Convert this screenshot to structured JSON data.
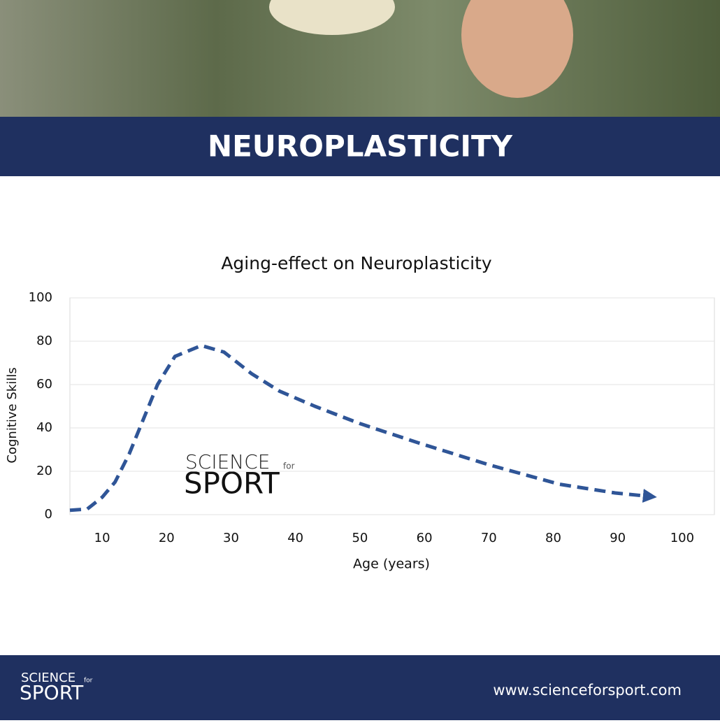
{
  "header": {
    "title": "NEUROPLASTICITY"
  },
  "logo": {
    "top": "SCIENCE",
    "small": "for",
    "bottom": "SPORT"
  },
  "footer": {
    "url": "www.scienceforsport.com"
  },
  "chart_data": {
    "type": "line",
    "title": "Aging-effect on Neuroplasticity",
    "x_label": "Age (years)",
    "y_label": "Cognitive Skills",
    "x": [
      5,
      7.7,
      10,
      12,
      14.2,
      16.4,
      18.6,
      21.3,
      25.4,
      28.9,
      33.2,
      37.5,
      43,
      50,
      59.2,
      70,
      81,
      89.6,
      95
    ],
    "series": [
      {
        "color": "#2f5597",
        "values": [
          2,
          2.6,
          8,
          15,
          28,
          44,
          60,
          73,
          78,
          75,
          65,
          57,
          50,
          42,
          33,
          23,
          14,
          10,
          8.4
        ]
      }
    ],
    "xlim": [
      5,
      105
    ],
    "xticks": [
      10,
      20,
      30,
      40,
      50,
      60,
      70,
      80,
      90,
      100
    ],
    "ylim": [
      0,
      100
    ],
    "yticks": [
      0,
      20,
      40,
      60,
      80,
      100
    ],
    "grid": true
  }
}
